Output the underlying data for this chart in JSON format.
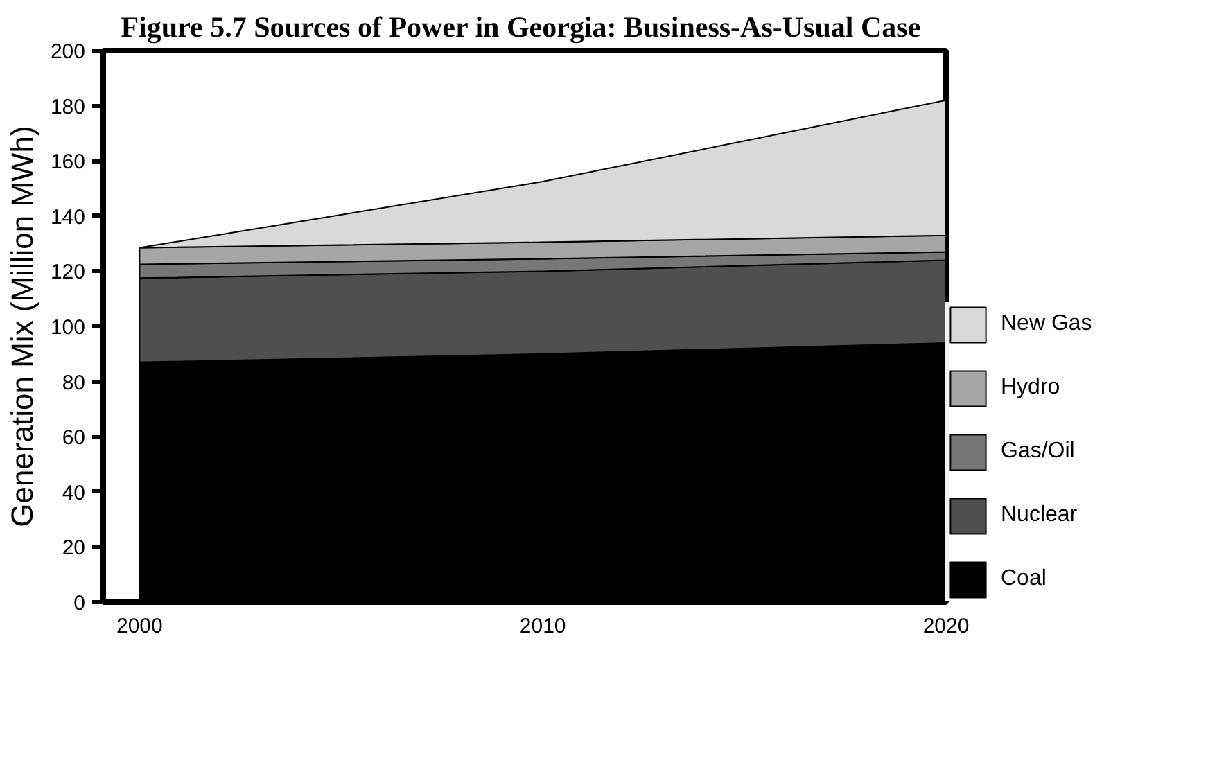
{
  "chart_data": {
    "type": "area",
    "stacked": true,
    "title": "Figure 5.7  Sources of Power in Georgia: Business-As-Usual Case",
    "ylabel": "Generation Mix (Million MWh)",
    "x": [
      2000,
      2010,
      2020
    ],
    "series": [
      {
        "name": "Coal",
        "color": "#000000",
        "values": [
          87,
          90,
          94
        ]
      },
      {
        "name": "Nuclear",
        "color": "#4f4f4f",
        "values": [
          30.5,
          30,
          30
        ]
      },
      {
        "name": "Gas/Oil",
        "color": "#777777",
        "values": [
          5,
          4.5,
          3
        ]
      },
      {
        "name": "Hydro",
        "color": "#a6a6a6",
        "values": [
          6,
          6,
          6
        ]
      },
      {
        "name": "New Gas",
        "color": "#d9d9d9",
        "values": [
          0,
          22,
          49
        ]
      }
    ],
    "xlim": [
      1999.1,
      2020
    ],
    "ylim": [
      0,
      200
    ],
    "xticks": [
      2000,
      2010,
      2020
    ],
    "yticks": [
      0,
      20,
      40,
      60,
      80,
      100,
      120,
      140,
      160,
      180,
      200
    ],
    "grid": false,
    "legend": "bottom right"
  }
}
